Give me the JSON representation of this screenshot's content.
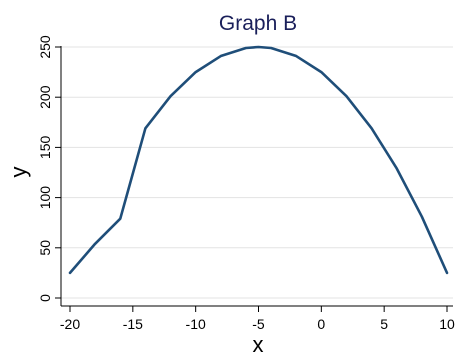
{
  "chart_data": {
    "type": "line",
    "title": "Graph B",
    "xlabel": "x",
    "ylabel": "y",
    "xlim": [
      -20,
      10
    ],
    "ylim": [
      0,
      250
    ],
    "x_ticks": [
      -20,
      -15,
      -10,
      -5,
      0,
      5,
      10
    ],
    "x_tick_labels": [
      "-20",
      "-15",
      "-10",
      "-5",
      "0",
      "5",
      "10"
    ],
    "y_ticks": [
      0,
      50,
      100,
      150,
      200,
      250
    ],
    "y_tick_labels": [
      "0",
      "50",
      "100",
      "150",
      "200",
      "250"
    ],
    "grid": true,
    "series": [
      {
        "x": [
          -20,
          -18,
          -16,
          -14,
          -12,
          -10,
          -8,
          -6,
          -5,
          -4,
          -2,
          0,
          2,
          4,
          6,
          8,
          10
        ],
        "values": [
          25,
          54,
          79,
          169,
          201,
          225,
          241,
          249,
          250,
          249,
          241,
          225,
          201,
          169,
          129,
          81,
          25
        ],
        "color": "#1f4e79"
      }
    ]
  }
}
